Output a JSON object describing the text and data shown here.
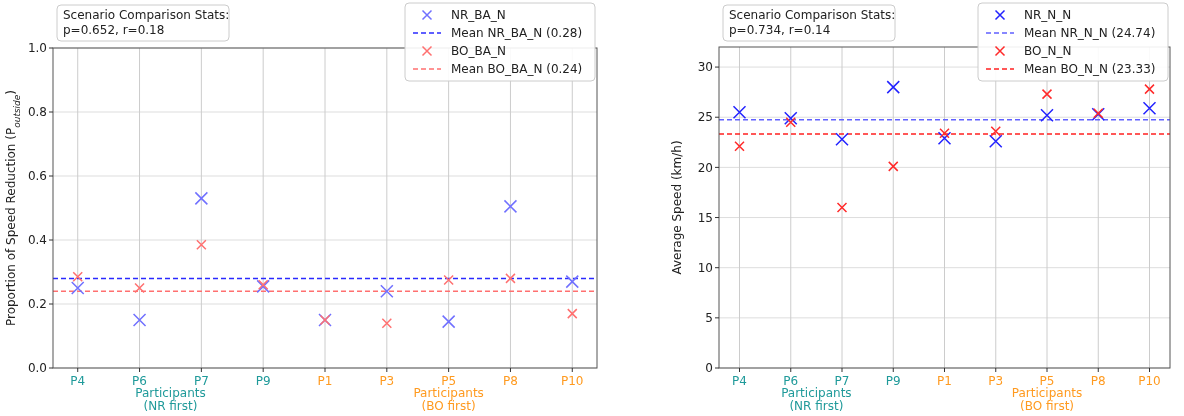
{
  "chart_data": [
    {
      "type": "scatter",
      "categories": [
        "P4",
        "P6",
        "P7",
        "P9",
        "P1",
        "P3",
        "P5",
        "P8",
        "P10"
      ],
      "ylabel": "Proportion of Speed Reduction (P$_{outside}$)",
      "ylim": [
        0,
        1
      ],
      "yticks": [
        {
          "value": 0,
          "label": "0.0"
        },
        0.2,
        0.4,
        0.6,
        0.8,
        {
          "value": 1,
          "label": "1.0"
        }
      ],
      "grid": true,
      "legend": "top right",
      "marker": "cross",
      "series": [
        {
          "name": "NR_BA_N",
          "color": "#7070ff",
          "values": [
            0.25,
            0.15,
            0.53,
            0.255,
            0.15,
            0.24,
            0.145,
            0.505,
            0.27
          ]
        },
        {
          "name": "BO_BA_N",
          "color": "#ff7070",
          "values": [
            0.285,
            0.25,
            0.385,
            0.26,
            0.15,
            0.14,
            0.275,
            0.28,
            0.17
          ]
        }
      ],
      "ref_lines": [
        {
          "axis": "y",
          "value": 0.28,
          "label": "Mean NR_BA_N (0.28)",
          "color": "#2a2aff",
          "line_style": "dashed"
        },
        {
          "axis": "y",
          "value": 0.24,
          "label": "Mean BO_BA_N (0.24)",
          "color": "#ff7070",
          "line_style": "dashed"
        }
      ],
      "annotations": [
        "Scenario Comparison Stats:\np=0.652, r=0.18",
        "Participants\n(NR first)",
        "Participants\n(BO first)"
      ]
    },
    {
      "type": "scatter",
      "categories": [
        "P4",
        "P6",
        "P7",
        "P9",
        "P1",
        "P3",
        "P5",
        "P8",
        "P10"
      ],
      "ylabel": "Average Speed (km/h)",
      "ylim": [
        0,
        32
      ],
      "yticks": [
        0,
        5,
        10,
        15,
        20,
        25,
        30
      ],
      "grid": true,
      "legend": "top right",
      "marker": "cross",
      "series": [
        {
          "name": "NR_N_N",
          "color": "#2222ff",
          "values": [
            25.5,
            24.9,
            22.8,
            28.0,
            22.9,
            22.6,
            25.2,
            25.3,
            25.9
          ]
        },
        {
          "name": "BO_N_N",
          "color": "#ff2a2a",
          "values": [
            22.1,
            24.5,
            16.0,
            20.1,
            23.4,
            23.6,
            27.3,
            25.4,
            27.8
          ]
        }
      ],
      "ref_lines": [
        {
          "axis": "y",
          "value": 24.74,
          "label": "Mean NR_N_N (24.74)",
          "color": "#6060ff",
          "line_style": "dashed"
        },
        {
          "axis": "y",
          "value": 23.33,
          "label": "Mean BO_N_N (23.33)",
          "color": "#ff2020",
          "line_style": "dashed"
        }
      ],
      "annotations": [
        "Scenario Comparison Stats:\np=0.734, r=0.14",
        "Participants\n(NR first)",
        "Participants\n(BO first)"
      ]
    }
  ]
}
